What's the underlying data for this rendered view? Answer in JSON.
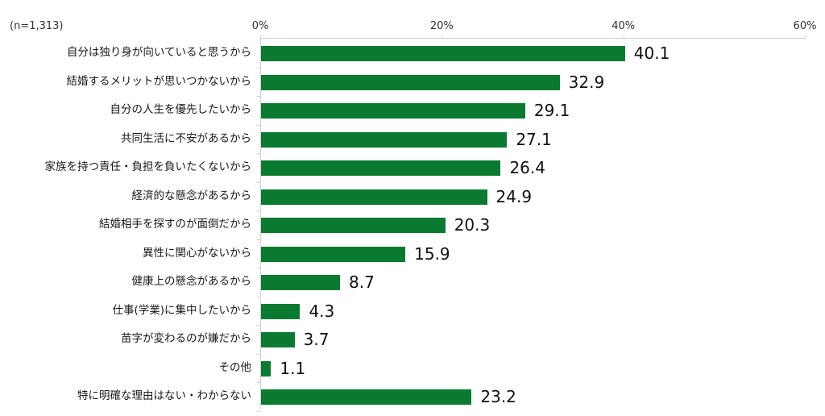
{
  "chart_data": {
    "type": "bar",
    "orientation": "horizontal",
    "title": "",
    "sample_size_label": "(n=1,313)",
    "xlabel": "",
    "ylabel": "",
    "xlim": [
      0,
      60
    ],
    "x_ticks": [
      "0%",
      "20%",
      "40%",
      "60%"
    ],
    "grid": false,
    "legend": null,
    "bar_color": "#0a7a30",
    "categories": [
      "自分は独り身が向いていると思うから",
      "結婚するメリットが思いつかないから",
      "自分の人生を優先したいから",
      "共同生活に不安があるから",
      "家族を持つ責任・負担を負いたくないから",
      "経済的な懸念があるから",
      "結婚相手を探すのが面倒だから",
      "異性に関心がないから",
      "健康上の懸念があるから",
      "仕事(学業)に集中したいから",
      "苗字が変わるのが嫌だから",
      "その他",
      "特に明確な理由はない・わからない"
    ],
    "values": [
      40.1,
      32.9,
      29.1,
      27.1,
      26.4,
      24.9,
      20.3,
      15.9,
      8.7,
      4.3,
      3.7,
      1.1,
      23.2
    ],
    "value_labels": [
      "40.1",
      "32.9",
      "29.1",
      "27.1",
      "26.4",
      "24.9",
      "20.3",
      "15.9",
      "8.7",
      "4.3",
      "3.7",
      "1.1",
      "23.2"
    ]
  }
}
